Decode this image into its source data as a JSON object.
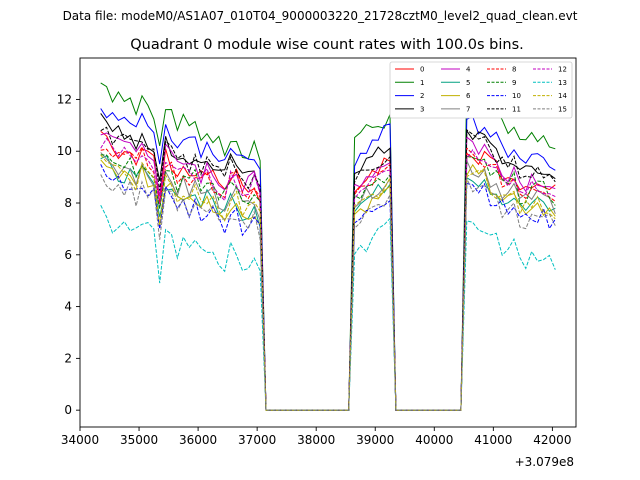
{
  "chart_data": {
    "type": "line",
    "suptitle": "Data file: modeM0/AS1A07_010T04_9000003220_21728cztM0_level2_quad_clean.evt",
    "title": "Quadrant 0 module wise count rates with 100.0s bins.",
    "xlabel": "",
    "ylabel": "",
    "x_offset_label": "+3.079e8",
    "xlim": [
      34000,
      42400
    ],
    "ylim": [
      -0.65,
      13.6
    ],
    "xticks": [
      34000,
      35000,
      36000,
      37000,
      38000,
      39000,
      40000,
      41000,
      42000
    ],
    "xtick_labels": [
      "34000",
      "35000",
      "36000",
      "37000",
      "38000",
      "39000",
      "40000",
      "41000",
      "42000"
    ],
    "yticks": [
      0,
      2,
      4,
      6,
      8,
      10,
      12
    ],
    "ytick_labels": [
      "0",
      "2",
      "4",
      "6",
      "8",
      "10",
      "12"
    ],
    "grid": false,
    "legend_position": "top-right",
    "legend_columns": 4,
    "segments": [
      {
        "start": 34350,
        "end": 37050,
        "shape": "decay"
      },
      {
        "start": 37100,
        "end": 38550,
        "shape": "zero"
      },
      {
        "start": 38650,
        "end": 39250,
        "shape": "rise"
      },
      {
        "start": 39350,
        "end": 40450,
        "shape": "zero"
      },
      {
        "start": 40550,
        "end": 42050,
        "shape": "decay"
      }
    ],
    "series": [
      {
        "name": "0",
        "color": "#ff0000",
        "dash": "solid",
        "base_first": 10.6,
        "base_last": 8.5,
        "rise_low": 8.3,
        "rise_high": 9.8
      },
      {
        "name": "1",
        "color": "#008000",
        "dash": "solid",
        "base_first": 12.9,
        "base_last": 9.9,
        "rise_low": 10.6,
        "rise_high": 11.2
      },
      {
        "name": "2",
        "color": "#0000ff",
        "dash": "solid",
        "base_first": 11.7,
        "base_last": 9.6,
        "rise_low": 9.6,
        "rise_high": 11.0
      },
      {
        "name": "3",
        "color": "#000000",
        "dash": "solid",
        "base_first": 11.3,
        "base_last": 8.9,
        "rise_low": 9.3,
        "rise_high": 10.2
      },
      {
        "name": "4",
        "color": "#c000c0",
        "dash": "solid",
        "base_first": 10.9,
        "base_last": 8.6,
        "rise_low": 8.7,
        "rise_high": 9.7
      },
      {
        "name": "5",
        "color": "#00a080",
        "dash": "solid",
        "base_first": 9.6,
        "base_last": 7.6,
        "rise_low": 7.8,
        "rise_high": 8.8
      },
      {
        "name": "6",
        "color": "#c0b000",
        "dash": "solid",
        "base_first": 9.7,
        "base_last": 7.4,
        "rise_low": 7.6,
        "rise_high": 8.5
      },
      {
        "name": "7",
        "color": "#808080",
        "dash": "solid",
        "base_first": 9.9,
        "base_last": 7.9,
        "rise_low": 8.0,
        "rise_high": 8.9
      },
      {
        "name": "8",
        "color": "#ff0000",
        "dash": "dashed",
        "base_first": 10.3,
        "base_last": 8.3,
        "rise_low": 8.3,
        "rise_high": 9.3
      },
      {
        "name": "9",
        "color": "#008000",
        "dash": "dashed",
        "base_first": 10.1,
        "base_last": 8.2,
        "rise_low": 8.2,
        "rise_high": 9.0
      },
      {
        "name": "10",
        "color": "#0000ff",
        "dash": "dashed",
        "base_first": 9.3,
        "base_last": 7.1,
        "rise_low": 7.2,
        "rise_high": 8.3
      },
      {
        "name": "11",
        "color": "#000000",
        "dash": "dashed",
        "base_first": 11.1,
        "base_last": 8.8,
        "rise_low": 8.9,
        "rise_high": 9.9
      },
      {
        "name": "12",
        "color": "#c000c0",
        "dash": "dashed",
        "base_first": 10.4,
        "base_last": 8.4,
        "rise_low": 8.4,
        "rise_high": 9.4
      },
      {
        "name": "13",
        "color": "#00c0c0",
        "dash": "dashed",
        "base_first": 7.6,
        "base_last": 5.6,
        "rise_low": 5.8,
        "rise_high": 7.6
      },
      {
        "name": "14",
        "color": "#c0b000",
        "dash": "dashed",
        "base_first": 9.7,
        "base_last": 7.6,
        "rise_low": 7.7,
        "rise_high": 8.7
      },
      {
        "name": "15",
        "color": "#808080",
        "dash": "dashed",
        "base_first": 9.1,
        "base_last": 7.1,
        "rise_low": 7.3,
        "rise_high": 8.1
      }
    ]
  }
}
